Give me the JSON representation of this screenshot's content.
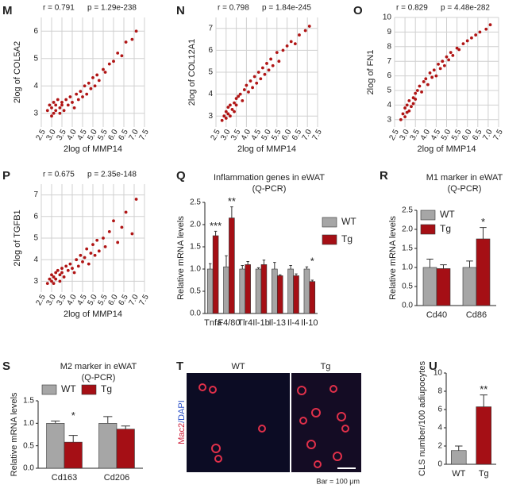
{
  "chart_data": [
    {
      "type": "scatter",
      "panel": "M",
      "r_text": "r = 0.791",
      "p_text": "p = 1.29e-238",
      "xlabel": "2log of MMP14",
      "ylabel": "2log of COL5A2",
      "color": "#b01515",
      "grid": true,
      "x": [
        2.8,
        2.9,
        3.0,
        3.0,
        3.1,
        3.1,
        3.2,
        3.2,
        3.3,
        3.4,
        3.4,
        3.5,
        3.5,
        3.6,
        3.7,
        3.8,
        3.9,
        4.0,
        4.1,
        4.2,
        4.3,
        4.4,
        4.5,
        4.6,
        4.7,
        4.8,
        4.9,
        5.0,
        5.1,
        5.2,
        5.3,
        5.5,
        5.6,
        5.8,
        6.0,
        6.2,
        6.4,
        6.6,
        6.9,
        7.1
      ],
      "y": [
        3.1,
        3.3,
        2.9,
        3.2,
        3.4,
        3.0,
        3.3,
        3.1,
        3.5,
        3.2,
        3.0,
        3.4,
        3.3,
        3.1,
        3.5,
        3.3,
        3.6,
        3.4,
        3.2,
        3.7,
        3.5,
        3.8,
        3.6,
        4.0,
        3.7,
        4.1,
        3.9,
        4.3,
        4.0,
        4.4,
        4.2,
        4.6,
        4.5,
        4.8,
        4.9,
        5.2,
        5.1,
        5.6,
        5.7,
        6.0
      ],
      "xlim": [
        2.5,
        7.5
      ],
      "xticks": [
        2.5,
        {
          "value": 3,
          "label": "3.0"
        },
        3.5,
        {
          "value": 4,
          "label": "4.0"
        },
        4.5,
        {
          "value": 5,
          "label": "5.0"
        },
        5.5,
        {
          "value": 6,
          "label": "6.0"
        },
        6.5,
        {
          "value": 7,
          "label": "7.0"
        },
        7.5
      ],
      "ylim": [
        2.5,
        6.5
      ],
      "yticks": [
        3,
        4,
        5,
        6
      ]
    },
    {
      "type": "scatter",
      "panel": "N",
      "r_text": "r = 0.798",
      "p_text": "p = 1.84e-245",
      "xlabel": "2log of MMP14",
      "ylabel": "2log of COL12A1",
      "color": "#b01515",
      "grid": true,
      "x": [
        2.8,
        2.9,
        3.0,
        3.0,
        3.1,
        3.1,
        3.2,
        3.2,
        3.3,
        3.4,
        3.4,
        3.5,
        3.5,
        3.6,
        3.7,
        3.8,
        3.9,
        4.0,
        4.1,
        4.2,
        4.3,
        4.4,
        4.5,
        4.6,
        4.7,
        4.8,
        4.9,
        5.0,
        5.1,
        5.2,
        5.3,
        5.5,
        5.6,
        5.8,
        6.0,
        6.2,
        6.4,
        6.6,
        6.9,
        7.1
      ],
      "y": [
        2.8,
        3.0,
        2.9,
        3.2,
        3.1,
        3.4,
        3.0,
        3.5,
        3.3,
        3.6,
        3.2,
        3.8,
        3.5,
        3.9,
        4.0,
        3.7,
        4.2,
        4.4,
        4.1,
        4.6,
        4.3,
        4.8,
        4.5,
        5.0,
        4.7,
        5.2,
        4.9,
        5.4,
        5.1,
        5.6,
        5.3,
        5.9,
        5.5,
        6.0,
        6.2,
        6.4,
        6.3,
        6.7,
        6.9,
        7.1
      ],
      "xlim": [
        2.5,
        7.5
      ],
      "xticks": [
        2.5,
        {
          "value": 3,
          "label": "3.0"
        },
        3.5,
        {
          "value": 4,
          "label": "4.0"
        },
        4.5,
        {
          "value": 5,
          "label": "5.0"
        },
        5.5,
        {
          "value": 6,
          "label": "6.0"
        },
        6.5,
        {
          "value": 7,
          "label": "7.0"
        },
        7.5
      ],
      "ylim": [
        2.5,
        7.5
      ],
      "yticks": [
        3,
        4,
        5,
        6,
        7
      ]
    },
    {
      "type": "scatter",
      "panel": "O",
      "r_text": "r = 0.829",
      "p_text": "p = 4.48e-282",
      "xlabel": "2log of MMP14",
      "ylabel": "2log of FN1",
      "color": "#b01515",
      "grid": true,
      "x": [
        2.8,
        2.9,
        3.0,
        3.0,
        3.1,
        3.1,
        3.2,
        3.2,
        3.3,
        3.4,
        3.4,
        3.5,
        3.5,
        3.6,
        3.7,
        3.8,
        3.9,
        4.0,
        4.1,
        4.2,
        4.3,
        4.4,
        4.5,
        4.6,
        4.7,
        4.8,
        4.9,
        5.0,
        5.1,
        5.2,
        5.3,
        5.5,
        5.6,
        5.8,
        6.0,
        6.2,
        6.4,
        6.6,
        6.9,
        7.1
      ],
      "y": [
        3.0,
        3.4,
        3.2,
        3.8,
        3.5,
        4.0,
        3.6,
        4.3,
        3.9,
        4.5,
        4.1,
        4.8,
        4.4,
        5.0,
        5.3,
        4.9,
        5.6,
        5.8,
        5.4,
        6.2,
        5.9,
        6.4,
        6.0,
        6.8,
        6.5,
        7.0,
        6.7,
        7.3,
        7.1,
        7.6,
        7.4,
        7.9,
        7.8,
        8.2,
        8.4,
        8.6,
        8.8,
        9.0,
        9.2,
        9.5
      ],
      "xlim": [
        2.5,
        7.5
      ],
      "xticks": [
        2.5,
        {
          "value": 3,
          "label": "3.0"
        },
        3.5,
        {
          "value": 4,
          "label": "4.0"
        },
        4.5,
        {
          "value": 5,
          "label": "5.0"
        },
        5.5,
        {
          "value": 6,
          "label": "6.0"
        },
        6.5,
        {
          "value": 7,
          "label": "7.0"
        },
        7.5
      ],
      "ylim": [
        2.5,
        10
      ],
      "yticks": [
        3,
        4,
        5,
        6,
        7,
        8,
        9,
        10
      ]
    },
    {
      "type": "scatter",
      "panel": "P",
      "r_text": "r = 0.675",
      "p_text": "p = 2.35e-148",
      "xlabel": "2log of MMP14",
      "ylabel": "2log of TGFB1",
      "color": "#b01515",
      "grid": true,
      "x": [
        2.8,
        2.9,
        3.0,
        3.0,
        3.1,
        3.1,
        3.2,
        3.2,
        3.3,
        3.4,
        3.4,
        3.5,
        3.5,
        3.6,
        3.7,
        3.8,
        3.9,
        4.0,
        4.1,
        4.2,
        4.3,
        4.4,
        4.5,
        4.6,
        4.7,
        4.8,
        4.9,
        5.0,
        5.1,
        5.2,
        5.3,
        5.5,
        5.6,
        5.8,
        6.0,
        6.2,
        6.4,
        6.6,
        6.9,
        7.1
      ],
      "y": [
        2.9,
        3.1,
        3.0,
        3.3,
        3.2,
        2.9,
        3.4,
        3.1,
        3.5,
        3.3,
        3.0,
        3.6,
        3.4,
        3.2,
        3.7,
        3.5,
        3.8,
        3.6,
        3.4,
        4.0,
        3.7,
        4.2,
        3.9,
        4.1,
        4.5,
        3.8,
        4.3,
        4.7,
        4.2,
        4.9,
        4.4,
        5.0,
        4.6,
        5.3,
        5.8,
        4.8,
        5.5,
        6.2,
        5.2,
        6.8
      ],
      "xlim": [
        2.5,
        7.5
      ],
      "xticks": [
        2.5,
        {
          "value": 3,
          "label": "3.0"
        },
        3.5,
        {
          "value": 4,
          "label": "4.0"
        },
        4.5,
        {
          "value": 5,
          "label": "5.0"
        },
        5.5,
        {
          "value": 6,
          "label": "6.0"
        },
        6.5,
        {
          "value": 7,
          "label": "7.0"
        },
        7.5
      ],
      "ylim": [
        2.5,
        7.5
      ],
      "yticks": [
        3,
        4,
        5,
        6,
        7
      ]
    },
    {
      "type": "bar",
      "panel": "Q",
      "title": "Inflammation genes in eWAT",
      "subtitle": "(Q-PCR)",
      "ylabel": "Relative mRNA levels",
      "categories": [
        "Tnfa",
        "F4/80",
        "Tlr4",
        "Il-1b",
        "Il-13",
        "Il-4",
        "Il-10"
      ],
      "series": [
        {
          "name": "WT",
          "color": "#a6a6a6",
          "values": [
            1.0,
            1.05,
            1.0,
            1.0,
            1.0,
            1.0,
            1.0
          ],
          "errors": [
            0.12,
            0.25,
            0.08,
            0.03,
            0.15,
            0.08,
            0.05
          ]
        },
        {
          "name": "Tg",
          "color": "#a50f15",
          "values": [
            1.75,
            2.15,
            1.1,
            1.1,
            0.85,
            0.85,
            0.72
          ],
          "errors": [
            0.1,
            0.25,
            0.07,
            0.1,
            0.02,
            0.04,
            0.03
          ]
        }
      ],
      "annotations": [
        "***",
        "**",
        null,
        null,
        null,
        null,
        "*"
      ],
      "ylim": [
        0,
        2.5
      ],
      "yticks": [
        {
          "value": 0,
          "label": "0.0"
        },
        0.5,
        {
          "value": 1,
          "label": "1.0"
        },
        1.5,
        {
          "value": 2,
          "label": "2.0"
        },
        2.5
      ],
      "legend": "right"
    },
    {
      "type": "bar",
      "panel": "R",
      "title": "M1 marker in eWAT",
      "subtitle": "(Q-PCR)",
      "ylabel": "Relative mRNA levels",
      "categories": [
        "Cd40",
        "Cd86"
      ],
      "series": [
        {
          "name": "WT",
          "color": "#a6a6a6",
          "values": [
            1.0,
            1.0
          ],
          "errors": [
            0.22,
            0.17
          ]
        },
        {
          "name": "Tg",
          "color": "#a50f15",
          "values": [
            0.97,
            1.75
          ],
          "errors": [
            0.1,
            0.3
          ]
        }
      ],
      "annotations": [
        null,
        "*"
      ],
      "ylim": [
        0,
        2.5
      ],
      "yticks": [
        {
          "value": 0,
          "label": "0.0"
        },
        0.5,
        {
          "value": 1,
          "label": "1.0"
        },
        1.5,
        {
          "value": 2,
          "label": "2.0"
        },
        2.5
      ],
      "legend": "top-left"
    },
    {
      "type": "bar",
      "panel": "S",
      "title": "M2 marker in eWAT",
      "subtitle": "(Q-PCR)",
      "ylabel": "Relative mRNA levels",
      "categories": [
        "Cd163",
        "Cd206"
      ],
      "series": [
        {
          "name": "WT",
          "color": "#a6a6a6",
          "values": [
            1.0,
            1.0
          ],
          "errors": [
            0.05,
            0.15
          ]
        },
        {
          "name": "Tg",
          "color": "#a50f15",
          "values": [
            0.58,
            0.87
          ],
          "errors": [
            0.15,
            0.07
          ]
        }
      ],
      "annotations": [
        "*",
        null
      ],
      "ylim": [
        0,
        1.5
      ],
      "yticks": [
        {
          "value": 0,
          "label": "0.0"
        },
        0.5,
        {
          "value": 1,
          "label": "1.0"
        },
        1.5
      ],
      "legend": "top"
    },
    {
      "type": "bar",
      "panel": "U",
      "ylabel": "CLS number/100 adiupocytes",
      "categories": [
        "WT",
        "Tg"
      ],
      "values": [
        1.5,
        6.3
      ],
      "errors": [
        0.5,
        1.3
      ],
      "colors": [
        "#a6a6a6",
        "#a50f15"
      ],
      "annotations": [
        null,
        "**"
      ],
      "ylim": [
        0,
        10
      ],
      "yticks": [
        0,
        2,
        4,
        6,
        8,
        10
      ]
    }
  ],
  "image_panel": {
    "panel": "T",
    "left_label": "WT",
    "right_label": "Tg",
    "stain_red": "Mac2",
    "stain_blue": "/DAPI",
    "scale_note": "Bar = 100 μm"
  }
}
